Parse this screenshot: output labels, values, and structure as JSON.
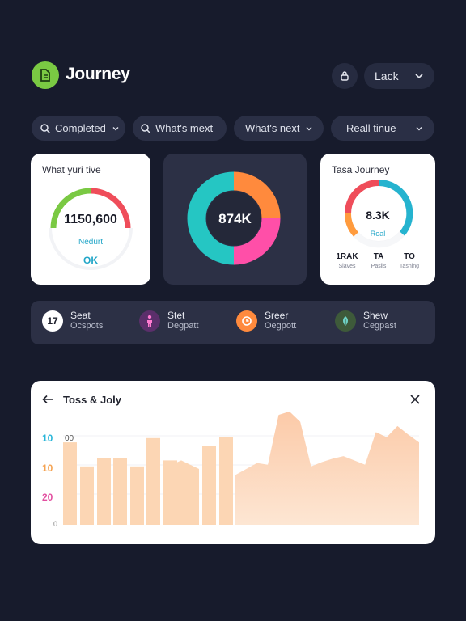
{
  "header": {
    "app_title": "Journey",
    "logo_icon": "app-logo-icon",
    "dropdown_label": "Lack"
  },
  "filters": [
    {
      "label": "Completed",
      "icon": "search-icon",
      "has_chevron": true
    },
    {
      "label": "What's mext",
      "icon": "search-icon",
      "has_chevron": false
    },
    {
      "label": "What's next",
      "icon": "",
      "has_chevron": true
    },
    {
      "label": "Reall tinue",
      "icon": "",
      "has_chevron": true
    }
  ],
  "card_gauge": {
    "title": "What yuri tive",
    "value": "1150,600",
    "sub_label": "Nedurt",
    "status": "OK"
  },
  "card_donut": {
    "value": "874K",
    "segments": [
      {
        "value": 25,
        "color": "#ff8a3d"
      },
      {
        "value": 25,
        "color": "#ff4fa8"
      },
      {
        "value": 50,
        "color": "#25c6c3"
      }
    ]
  },
  "card_journey": {
    "title": "Tasa Journey",
    "value": "8.3K",
    "sub_label": "Roal",
    "stats": [
      {
        "value": "1RAK",
        "label": "Slaves"
      },
      {
        "value": "TA",
        "label": "Paslis"
      },
      {
        "value": "TO",
        "label": "Tasning"
      }
    ]
  },
  "strip": [
    {
      "title": "Seat",
      "subtitle": "Ocspots",
      "badge": "17",
      "icon": "number-badge-icon",
      "color": "#ffffff"
    },
    {
      "title": "Stet",
      "subtitle": "Degpatt",
      "badge": "",
      "icon": "person-icon",
      "color": "#5b2f6b"
    },
    {
      "title": "Sreer",
      "subtitle": "Oegpott",
      "badge": "",
      "icon": "timer-icon",
      "color": "#ff8a3d"
    },
    {
      "title": "Shew",
      "subtitle": "Cegpast",
      "badge": "",
      "icon": "leaf-icon",
      "color": "#3e5a3a"
    }
  ],
  "chart_panel": {
    "title": "Toss & Joly",
    "back_icon": "arrow-left-icon",
    "close_icon": "close-icon"
  },
  "chart_data": {
    "type": "bar",
    "title": "Toss & Joly",
    "ytick_labels": [
      {
        "text": "10",
        "color": "#29b6d9"
      },
      {
        "text": "00",
        "color": "#555555"
      },
      {
        "text": "10",
        "color": "#f5a352"
      },
      {
        "text": "20",
        "color": "#e24fa0"
      },
      {
        "text": "0",
        "color": "#888888"
      }
    ],
    "ylim": [
      0,
      130
    ],
    "bars": [
      96,
      68,
      78,
      78,
      68,
      101,
      75,
      92,
      102
    ],
    "area": [
      58,
      65,
      72,
      70,
      128,
      132,
      120,
      68,
      73,
      77,
      80,
      75,
      70,
      108,
      102,
      115,
      105,
      96
    ],
    "bar_color": "#fcd6b4",
    "area_color_top": "#fccaa8",
    "area_color_bottom": "#fde6d3"
  }
}
